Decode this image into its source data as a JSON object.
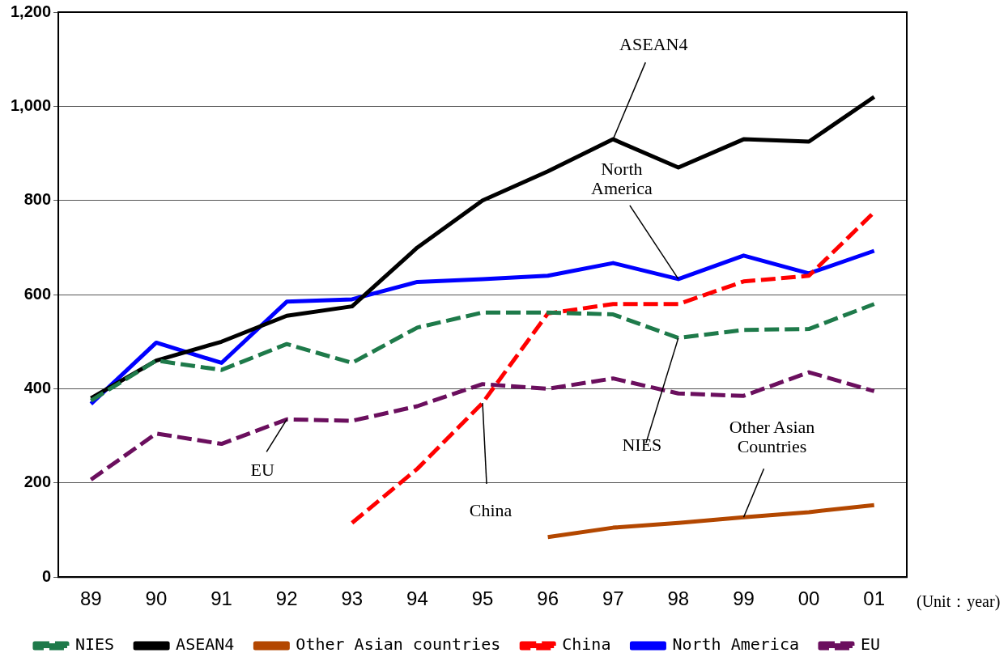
{
  "chart_data": {
    "type": "line",
    "xlabel": "(Unit：year)",
    "categories": [
      "89",
      "90",
      "91",
      "92",
      "93",
      "94",
      "95",
      "96",
      "97",
      "98",
      "99",
      "00",
      "01"
    ],
    "series": [
      {
        "name": "NIES",
        "color": "#1e7a4a",
        "line_style": "dashed",
        "values": [
          375,
          460,
          440,
          495,
          455,
          530,
          562,
          562,
          558,
          508,
          525,
          527,
          580
        ]
      },
      {
        "name": "ASEAN4",
        "color": "#000000",
        "line_style": "solid",
        "values": [
          380,
          460,
          500,
          555,
          575,
          700,
          800,
          862,
          930,
          870,
          930,
          925,
          1020
        ]
      },
      {
        "name": "Other Asian countries",
        "color": "#b34700",
        "line_style": "solid",
        "values": [
          null,
          null,
          null,
          null,
          null,
          null,
          null,
          85,
          105,
          115,
          127,
          138,
          153
        ]
      },
      {
        "name": "China",
        "color": "#ff0000",
        "line_style": "dashed",
        "values": [
          null,
          null,
          null,
          null,
          115,
          230,
          370,
          560,
          580,
          580,
          628,
          640,
          775
        ]
      },
      {
        "name": "North America",
        "color": "#0000ff",
        "line_style": "solid",
        "values": [
          368,
          498,
          455,
          585,
          590,
          627,
          633,
          640,
          667,
          633,
          683,
          645,
          693
        ]
      },
      {
        "name": "EU",
        "color": "#6b0f5e",
        "line_style": "dashed",
        "values": [
          207,
          305,
          283,
          335,
          332,
          363,
          410,
          400,
          422,
          390,
          385,
          435,
          395
        ]
      }
    ],
    "ylim": [
      0,
      1200
    ],
    "yticks": [
      0,
      200,
      400,
      600,
      800,
      {
        "value": 1000,
        "label": "1,000"
      },
      {
        "value": 1200,
        "label": "1,200"
      }
    ],
    "grid": "y",
    "legend": "bottom",
    "marker": "none",
    "annotations": [
      {
        "text": "ASEAN4",
        "x": "97",
        "y": 930
      },
      {
        "text": "North\nAmerica",
        "x": "98",
        "y": 633
      },
      {
        "text": "NIES",
        "x": "98",
        "y": 508
      },
      {
        "text": "Other Asian\nCountries",
        "x": "99",
        "y": 127
      },
      {
        "text": "EU",
        "x": "92",
        "y": 335
      },
      {
        "text": "China",
        "x": "95",
        "y": 370
      }
    ]
  }
}
